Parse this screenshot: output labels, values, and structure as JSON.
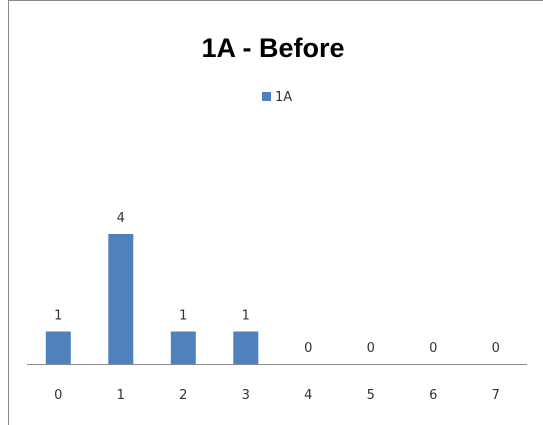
{
  "chart_data": {
    "type": "bar",
    "title": "1A - Before",
    "categories": [
      "0",
      "1",
      "2",
      "3",
      "4",
      "5",
      "6",
      "7"
    ],
    "series": [
      {
        "name": "1A",
        "values": [
          1,
          4,
          1,
          1,
          0,
          0,
          0,
          0
        ],
        "color": "#4F81BD"
      }
    ],
    "data_labels": [
      "1",
      "4",
      "1",
      "1",
      "0",
      "0",
      "0",
      "0"
    ],
    "ylim": [
      0,
      8
    ],
    "legend_position": "top",
    "grid": false,
    "show_y_axis": false
  },
  "colors": {
    "frame": "#888888",
    "axis": "#888888",
    "bar": "#4F81BD",
    "text": "#333333"
  }
}
